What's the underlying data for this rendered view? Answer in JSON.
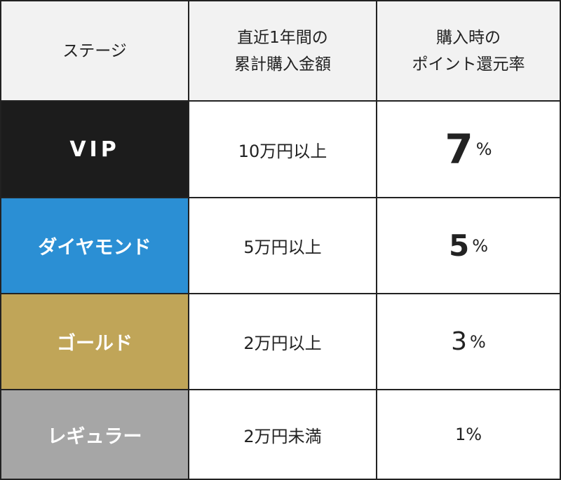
{
  "table": {
    "headers": [
      {
        "lines": [
          "ステージ"
        ]
      },
      {
        "lines": [
          "直近1年間の",
          "累計購入金額"
        ]
      },
      {
        "lines": [
          "購入時の",
          "ポイント還元率"
        ]
      }
    ],
    "rows": [
      {
        "stage": "VIP",
        "stage_color": "#1c1c1c",
        "amount": "10万円以上",
        "rate_value": "7",
        "rate_unit": "%"
      },
      {
        "stage": "ダイヤモンド",
        "stage_color": "#2b8fd4",
        "amount": "5万円以上",
        "rate_value": "5",
        "rate_unit": "%"
      },
      {
        "stage": "ゴールド",
        "stage_color": "#c0a558",
        "amount": "2万円以上",
        "rate_value": "3",
        "rate_unit": "%"
      },
      {
        "stage": "レギュラー",
        "stage_color": "#a6a6a6",
        "amount": "2万円未満",
        "rate_value": "1",
        "rate_unit": "%"
      }
    ]
  }
}
